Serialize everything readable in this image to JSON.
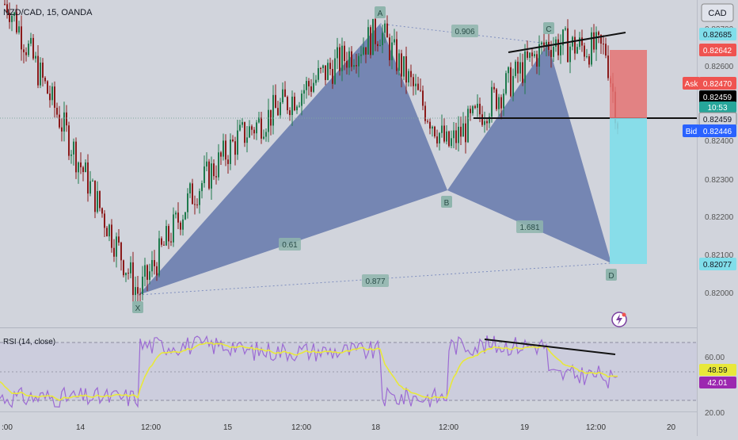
{
  "header": {
    "symbol": "NZD/CAD, 15, OANDA"
  },
  "currency_button": "CAD",
  "price_axis": {
    "ticks": [
      "0.82700",
      "0.82600",
      "0.82500",
      "0.82400",
      "0.82300",
      "0.82200",
      "0.82100",
      "0.82000"
    ],
    "labels": {
      "target_price": "0.82685",
      "stop_price": "0.82642",
      "ask_label": "Ask",
      "ask_price": "0.82470",
      "last_price": "0.82459",
      "countdown": "10:53",
      "entry_price": "0.82459",
      "bid_label": "Bid",
      "bid_price": "0.82446",
      "lower_price": "0.82077"
    }
  },
  "time_axis": {
    "ticks": [
      ":00",
      "14",
      "12:00",
      "15",
      "12:00",
      "18",
      "12:00",
      "19",
      "12:00",
      "20"
    ]
  },
  "pattern": {
    "points": [
      "X",
      "A",
      "B",
      "C",
      "D"
    ],
    "ratios": {
      "ca": "0.906",
      "xb": "0.61",
      "bd": "1.681",
      "xd": "0.877"
    }
  },
  "rsi_panel": {
    "title": "RSI (14, close)",
    "ticks": [
      "60.00",
      "20.00"
    ],
    "value_label": "48.59",
    "ma_label": "42.01"
  },
  "colors": {
    "background": "#d1d4dc",
    "pattern_fill": "#5b6fa8",
    "candle_up": "#1f7a4d",
    "candle_down": "#8b1a1a",
    "stop_zone": "#e57373",
    "target_zone": "#80deea",
    "rsi_line": "#9c6bd3",
    "rsi_ma": "#e8e83a",
    "label_green": "#26a69a",
    "label_red": "#ef5350",
    "label_blue": "#2962ff"
  },
  "chart_data": {
    "type": "line",
    "instrument": "NZD/CAD",
    "interval": "15",
    "source": "OANDA",
    "ylim": [
      0.8192,
      0.8276
    ],
    "x": [
      "13 00:00",
      "14 12:00",
      "15 00:00",
      "15 12:00",
      "18 00:00",
      "18 12:00",
      "19 00:00",
      "19 12:00",
      "19 14:30"
    ],
    "series": [
      {
        "values": [
          0.8275,
          0.82,
          0.8225,
          0.824,
          0.8268,
          0.8238,
          0.8265,
          0.8263,
          0.8245
        ]
      }
    ],
    "pattern_points": [
      {
        "label": "X",
        "price": 0.82
      },
      {
        "label": "A",
        "price": 0.8275
      },
      {
        "label": "B",
        "price": 0.8228
      },
      {
        "label": "C",
        "price": 0.8269
      },
      {
        "label": "D",
        "price": 0.8208
      }
    ],
    "position": {
      "entry": 0.82459,
      "stop": 0.82642,
      "target": 0.82077
    },
    "rsi": {
      "period": 14,
      "value": 48.59,
      "ma": 42.01,
      "ylim": [
        20,
        70
      ]
    }
  }
}
